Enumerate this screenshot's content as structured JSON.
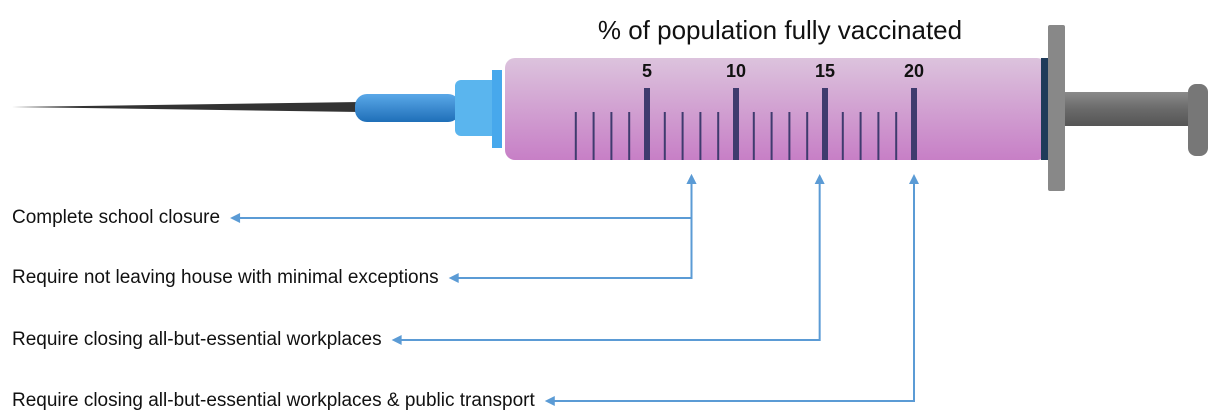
{
  "chart_data": {
    "type": "syringe",
    "title": "% of population fully vaccinated",
    "xlim": [
      0,
      20
    ],
    "xticks": [
      5,
      10,
      15,
      20
    ],
    "color": "#5b9bd5",
    "annotations": [
      {
        "label": "Complete school closure",
        "value": 7.5
      },
      {
        "label": "Require not leaving house with minimal exceptions",
        "value": 7.5
      },
      {
        "label": "Require closing all-but-essential workplaces",
        "value": 14.7
      },
      {
        "label": "Require closing all-but-essential workplaces & public transport",
        "value": 20
      }
    ]
  }
}
